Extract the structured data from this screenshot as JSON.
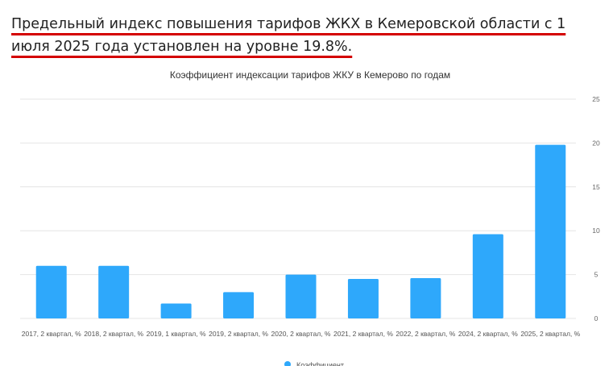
{
  "header": {
    "text": "Предельный индекс повышения тарифов ЖКХ в Кемеровской области с 1 июля 2025 года установлен на уровне 19.8%."
  },
  "chart_data": {
    "type": "bar",
    "title": "Коэффициент индексации тарифов ЖКУ в Кемерово по годам",
    "categories": [
      "2017, 2 квартал, %",
      "2018, 2 квартал, %",
      "2019, 1 квартал, %",
      "2019, 2 квартал, %",
      "2020, 2 квартал, %",
      "2021, 2 квартал, %",
      "2022, 2 квартал, %",
      "2024, 2 квартал, %",
      "2025, 2 квартал, %"
    ],
    "series": [
      {
        "name": "Коэффициент",
        "color": "#2ea8fb",
        "values": [
          6.0,
          6.0,
          1.7,
          3.0,
          5.0,
          4.5,
          4.6,
          9.6,
          19.8
        ]
      }
    ],
    "ylim": [
      0,
      25
    ],
    "yticks": [
      0,
      5,
      10,
      15,
      20,
      25
    ],
    "grid": true,
    "y_axis_side": "right",
    "legend": "bottom"
  }
}
